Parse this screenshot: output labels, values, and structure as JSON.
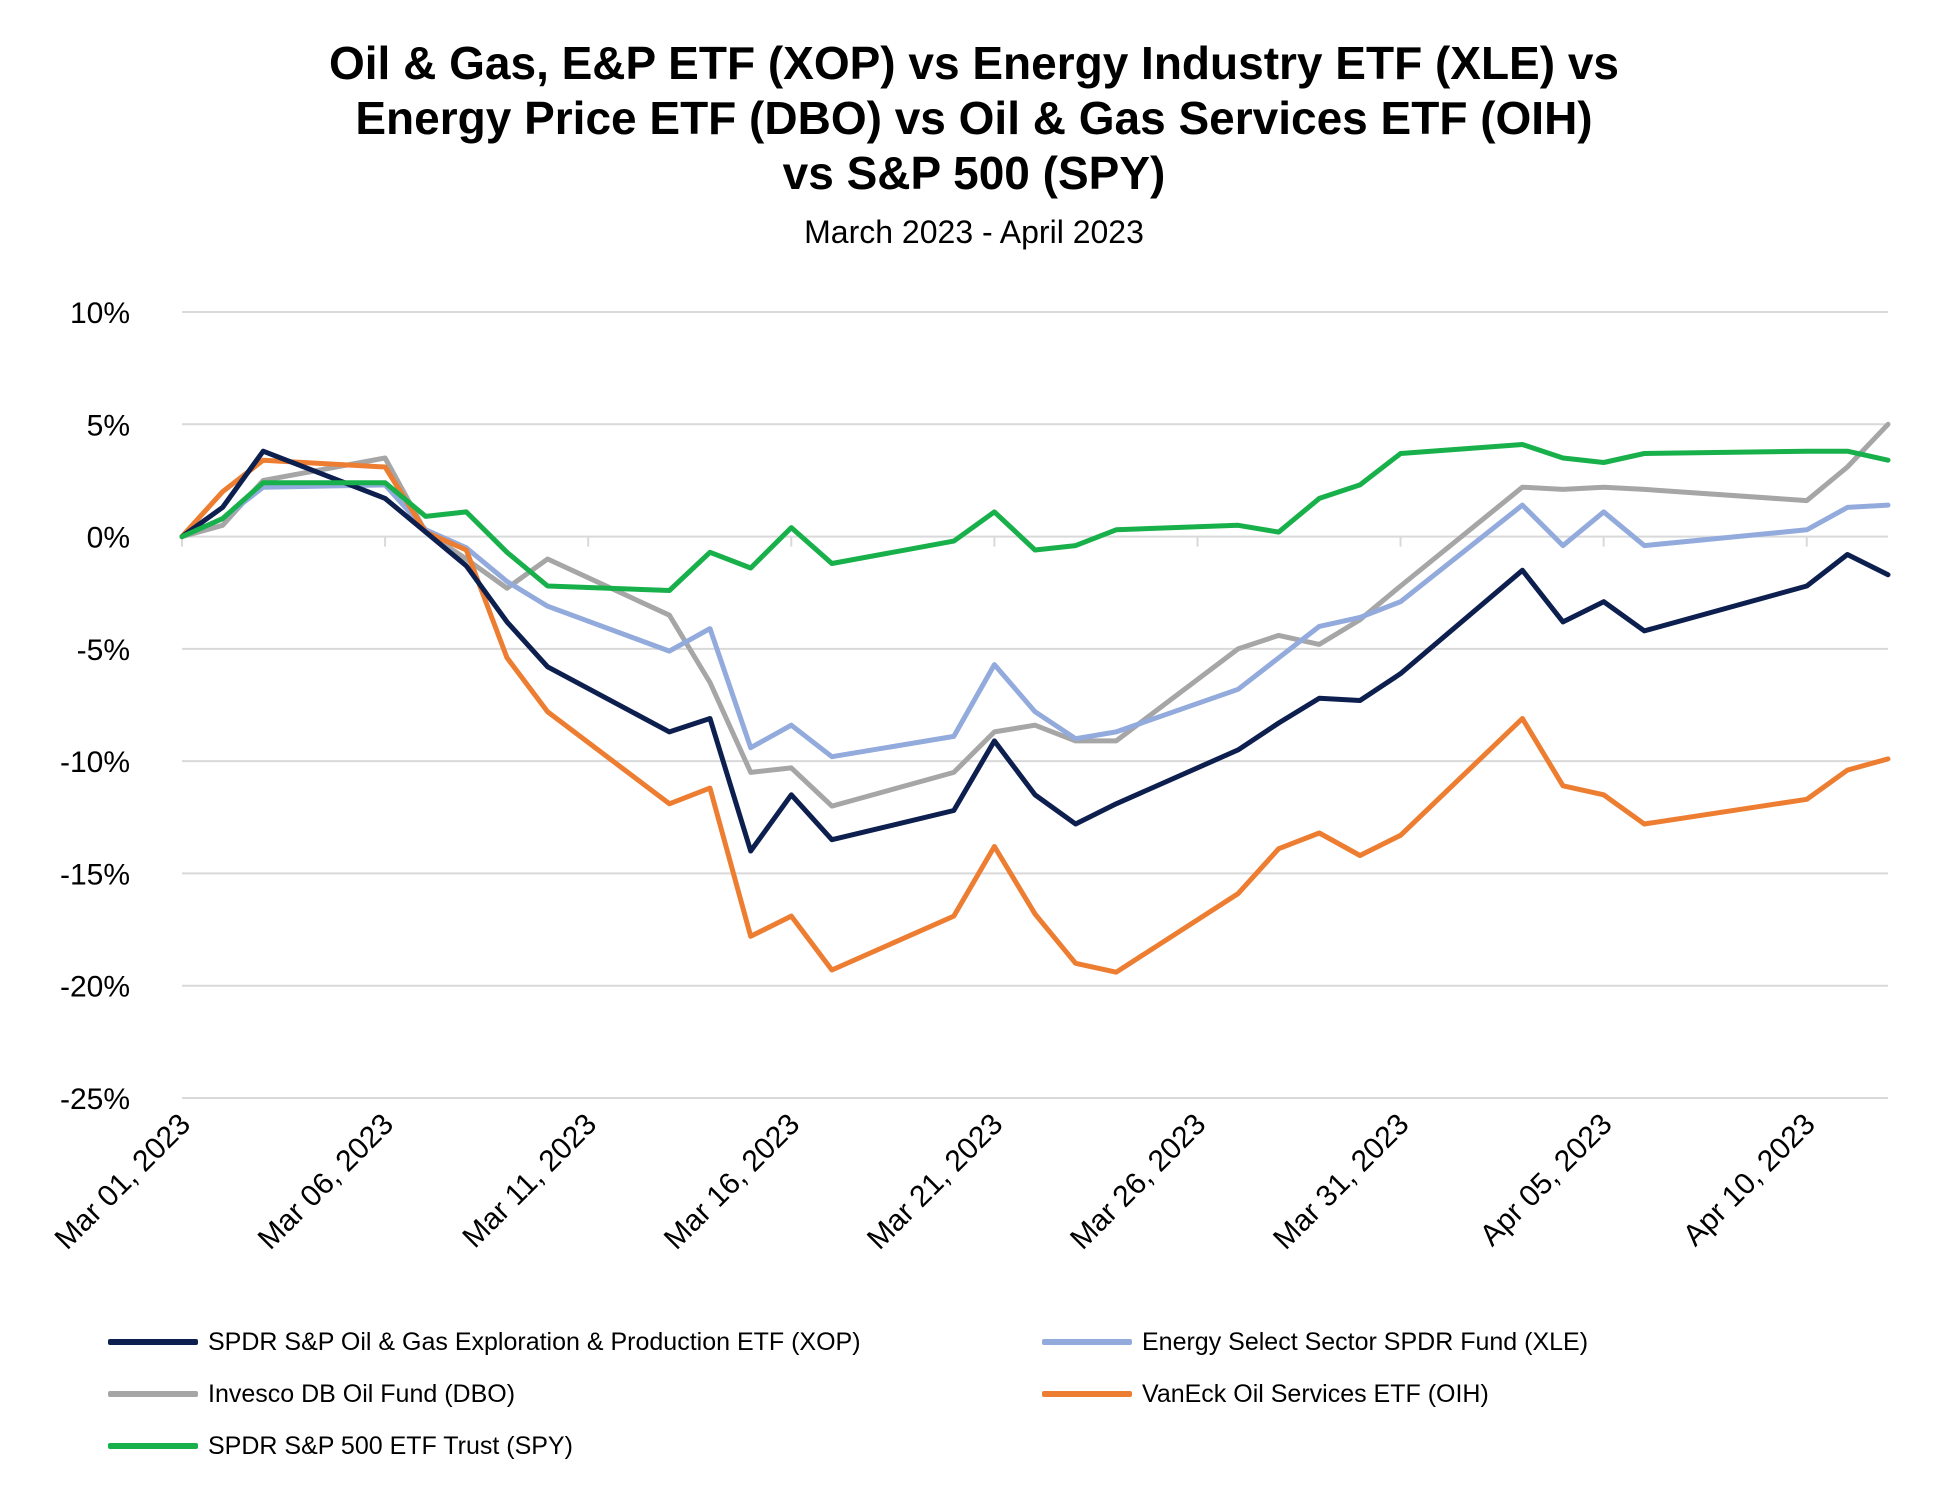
{
  "title_lines": [
    "Oil & Gas, E&P ETF (XOP) vs Energy Industry ETF (XLE) vs",
    "Energy Price ETF (DBO) vs Oil & Gas Services ETF (OIH)",
    "vs S&P 500 (SPY)"
  ],
  "subtitle": "March 2023 - April 2023",
  "chart_data": {
    "type": "line",
    "title": "Oil & Gas, E&P ETF (XOP) vs Energy Industry ETF (XLE) vs Energy Price ETF (DBO) vs Oil & Gas Services ETF (OIH) vs S&P 500 (SPY)",
    "subtitle": "March 2023 - April 2023",
    "xlabel": "",
    "ylabel": "",
    "ylim": [
      -25,
      10
    ],
    "y_ticks": [
      10,
      5,
      0,
      -5,
      -10,
      -15,
      -20,
      -25
    ],
    "y_tick_labels": [
      "10%",
      "5%",
      "0%",
      "-5%",
      "-10%",
      "-15%",
      "-20%",
      "-25%"
    ],
    "x_ticks": [
      "2023-03-01",
      "2023-03-06",
      "2023-03-11",
      "2023-03-16",
      "2023-03-21",
      "2023-03-26",
      "2023-03-31",
      "2023-04-05",
      "2023-04-10"
    ],
    "x_tick_labels": [
      "Mar 01, 2023",
      "Mar 06, 2023",
      "Mar 11, 2023",
      "Mar 16, 2023",
      "Mar 21, 2023",
      "Mar 26, 2023",
      "Mar 31, 2023",
      "Apr 05, 2023",
      "Apr 10, 2023"
    ],
    "xlim": [
      "2023-03-01",
      "2023-04-12"
    ],
    "grid": "horizontal",
    "legend_position": "bottom",
    "x": [
      "2023-03-01",
      "2023-03-02",
      "2023-03-03",
      "2023-03-06",
      "2023-03-07",
      "2023-03-08",
      "2023-03-09",
      "2023-03-10",
      "2023-03-13",
      "2023-03-14",
      "2023-03-15",
      "2023-03-16",
      "2023-03-17",
      "2023-03-20",
      "2023-03-21",
      "2023-03-22",
      "2023-03-23",
      "2023-03-24",
      "2023-03-27",
      "2023-03-28",
      "2023-03-29",
      "2023-03-30",
      "2023-03-31",
      "2023-04-03",
      "2023-04-04",
      "2023-04-05",
      "2023-04-06",
      "2023-04-10",
      "2023-04-11",
      "2023-04-12"
    ],
    "series": [
      {
        "name": "SPDR S&P Oil & Gas Exploration & Production ETF (XOP)",
        "color": "#0d1f4f",
        "values": [
          0,
          1.3,
          3.8,
          1.7,
          0.2,
          -1.3,
          -3.8,
          -5.8,
          -8.7,
          -8.1,
          -14.0,
          -11.5,
          -13.5,
          -12.2,
          -9.1,
          -11.5,
          -12.8,
          -11.9,
          -9.5,
          -8.3,
          -7.2,
          -7.3,
          -6.1,
          -1.5,
          -3.8,
          -2.9,
          -4.2,
          -2.2,
          -0.8,
          -1.7
        ]
      },
      {
        "name": "Energy Select Sector SPDR Fund (XLE)",
        "color": "#93abdc",
        "values": [
          0,
          0.8,
          2.2,
          2.3,
          0.3,
          -0.5,
          -2.0,
          -3.1,
          -5.1,
          -4.1,
          -9.4,
          -8.4,
          -9.8,
          -8.9,
          -5.7,
          -7.8,
          -9.0,
          -8.7,
          -6.8,
          -5.4,
          -4.0,
          -3.6,
          -2.9,
          1.4,
          -0.4,
          1.1,
          -0.4,
          0.3,
          1.3,
          1.4
        ]
      },
      {
        "name": "Invesco DB Oil Fund (DBO)",
        "color": "#a6a6a6",
        "values": [
          0,
          0.5,
          2.5,
          3.5,
          0.2,
          -1.0,
          -2.3,
          -1.0,
          -3.5,
          -6.5,
          -10.5,
          -10.3,
          -12.0,
          -10.5,
          -8.7,
          -8.4,
          -9.1,
          -9.1,
          -5.0,
          -4.4,
          -4.8,
          -3.7,
          -2.2,
          2.2,
          2.1,
          2.2,
          2.1,
          1.6,
          3.1,
          5.0
        ]
      },
      {
        "name": "VanEck Oil Services ETF (OIH)",
        "color": "#ed7d31",
        "values": [
          0,
          2.0,
          3.4,
          3.1,
          0.2,
          -0.6,
          -5.4,
          -7.8,
          -11.9,
          -11.2,
          -17.8,
          -16.9,
          -19.3,
          -16.9,
          -13.8,
          -16.8,
          -19.0,
          -19.4,
          -15.9,
          -13.9,
          -13.2,
          -14.2,
          -13.3,
          -8.1,
          -11.1,
          -11.5,
          -12.8,
          -11.7,
          -10.4,
          -9.9
        ]
      },
      {
        "name": "SPDR S&P 500 ETF Trust (SPY)",
        "color": "#18b04a",
        "values": [
          0,
          0.8,
          2.4,
          2.4,
          0.9,
          1.1,
          -0.7,
          -2.2,
          -2.4,
          -0.7,
          -1.4,
          0.4,
          -1.2,
          -0.2,
          1.1,
          -0.6,
          -0.4,
          0.3,
          0.5,
          0.2,
          1.7,
          2.3,
          3.7,
          4.1,
          3.5,
          3.3,
          3.7,
          3.8,
          3.8,
          3.4
        ]
      }
    ]
  }
}
